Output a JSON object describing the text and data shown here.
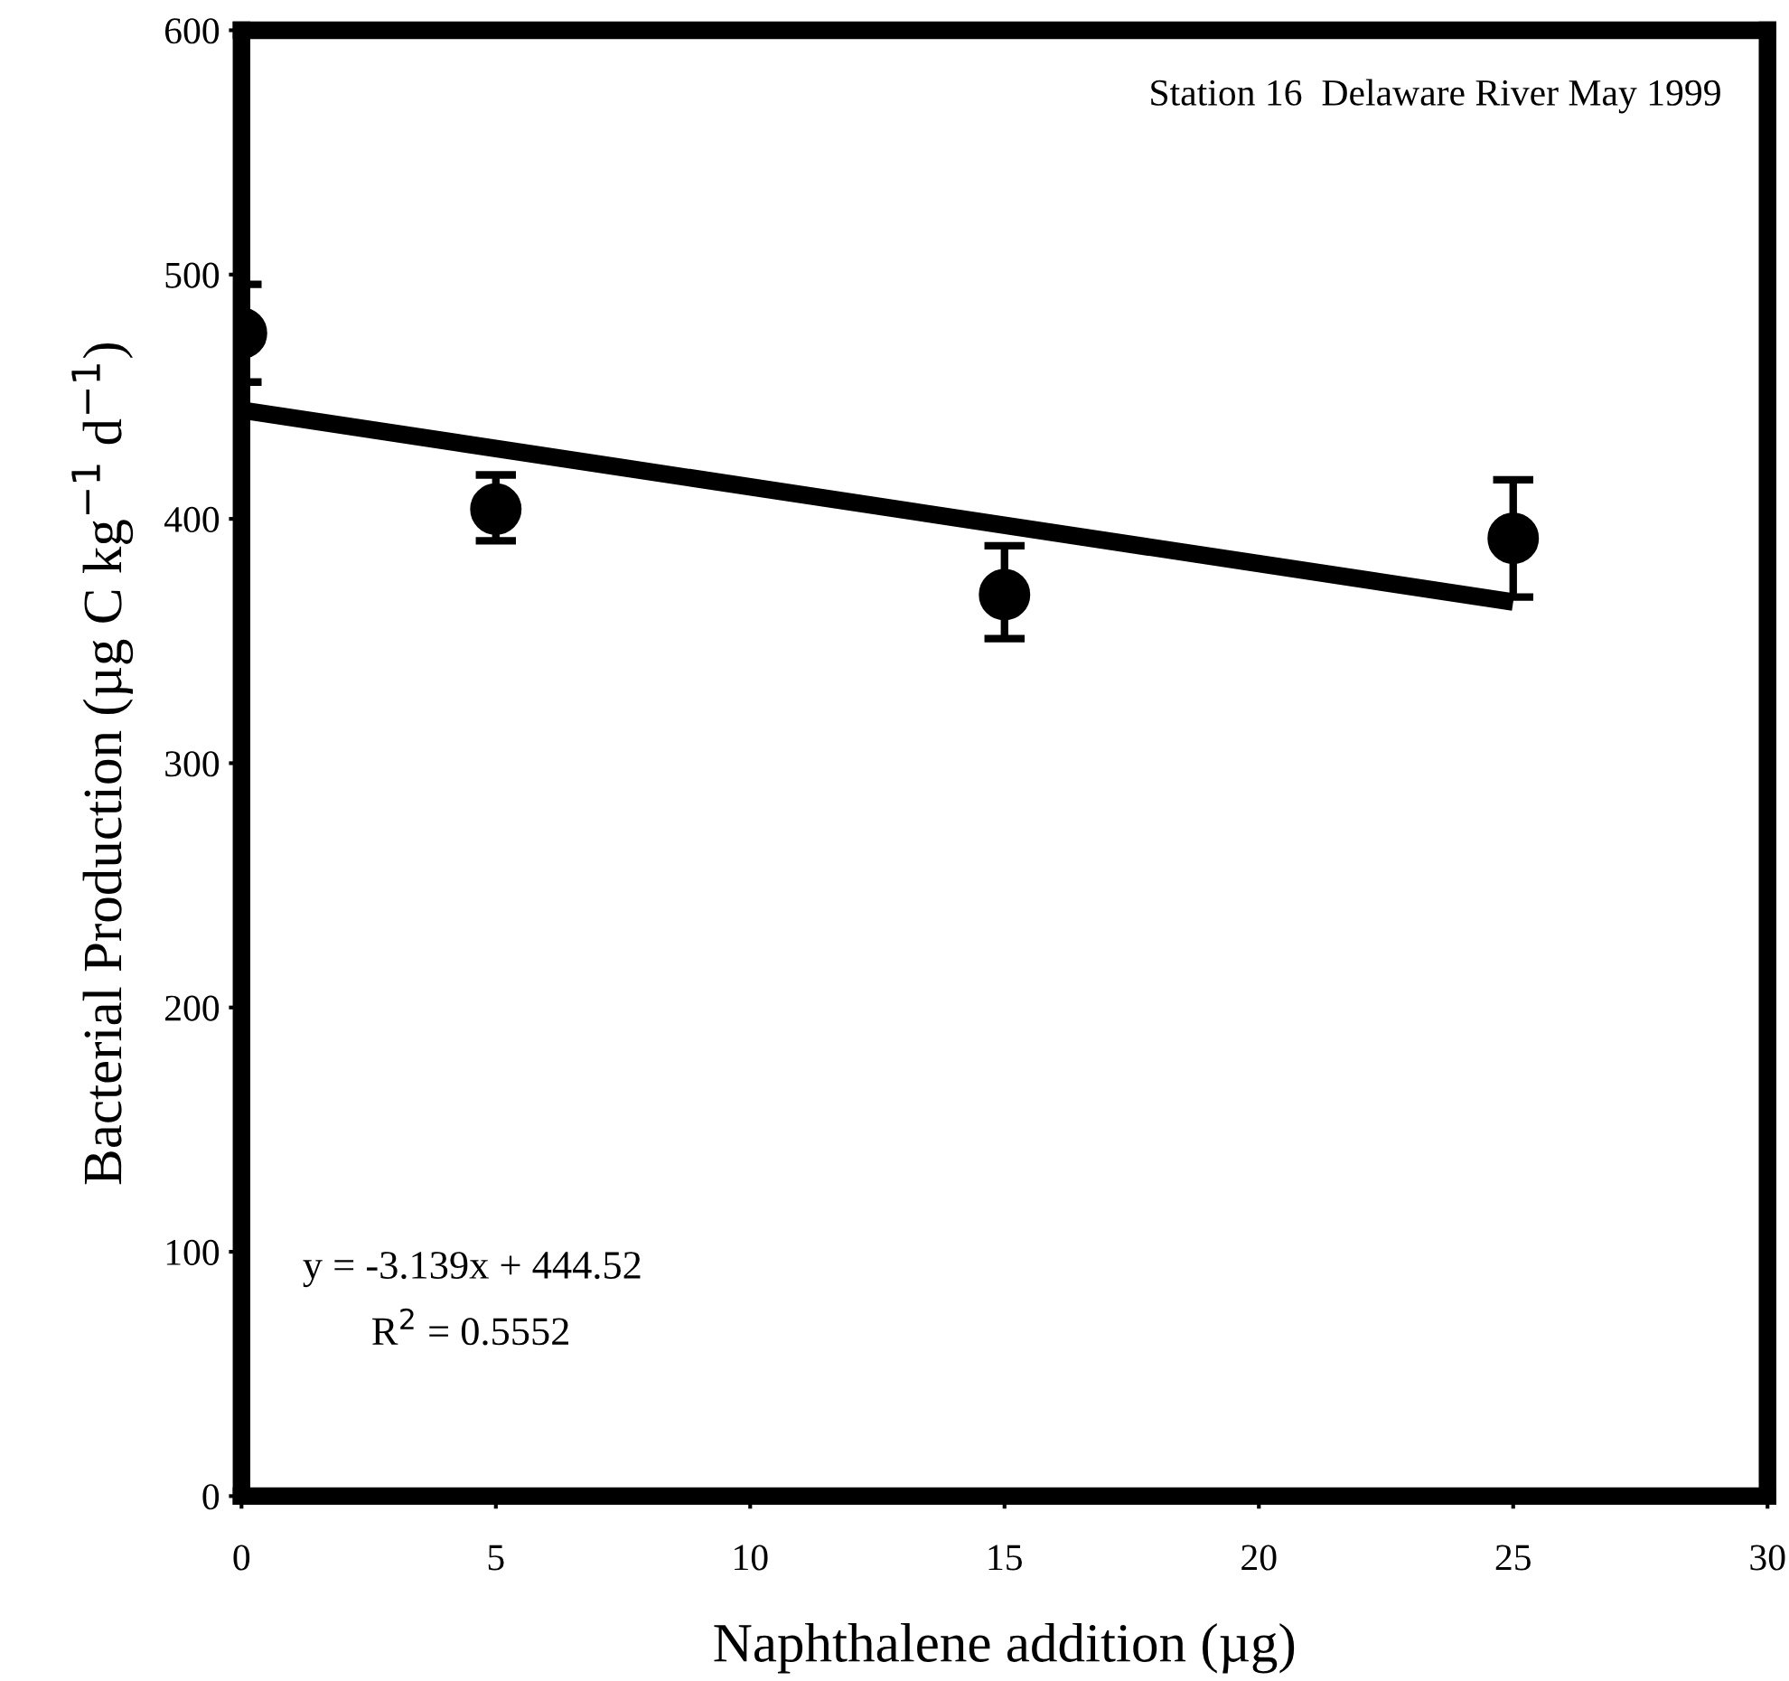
{
  "chart_data": {
    "type": "scatter",
    "xlabel": "Naphthalene addition (µg)",
    "ylabel": "Bacterial Production (µg C kg$^{−1}$ d$^{−1}$)",
    "annotations": [
      "Station 16  Delaware River May 1999",
      "y = -3.139x + 444.52",
      "R$^{2}$ = 0.5552"
    ],
    "series": [
      {
        "color": "#000000",
        "x": [
          0,
          5,
          15,
          25
        ],
        "values": [
          476,
          404,
          369,
          392
        ],
        "errors": [
          20,
          [
            391,
            418
          ],
          [
            351,
            389
          ],
          [
            368,
            416
          ]
        ],
        "marker": "circle"
      },
      {
        "type": "line",
        "color": "#000000",
        "x": [
          0,
          25
        ],
        "values": [
          444.5,
          366
        ]
      }
    ],
    "xlim": [
      0,
      30
    ],
    "xticks": [
      0,
      5,
      10,
      15,
      20,
      25,
      30
    ],
    "ylim": [
      0,
      600
    ],
    "yticks": [
      0,
      100,
      200,
      300,
      400,
      500,
      600
    ],
    "grid": false,
    "legend": false
  }
}
